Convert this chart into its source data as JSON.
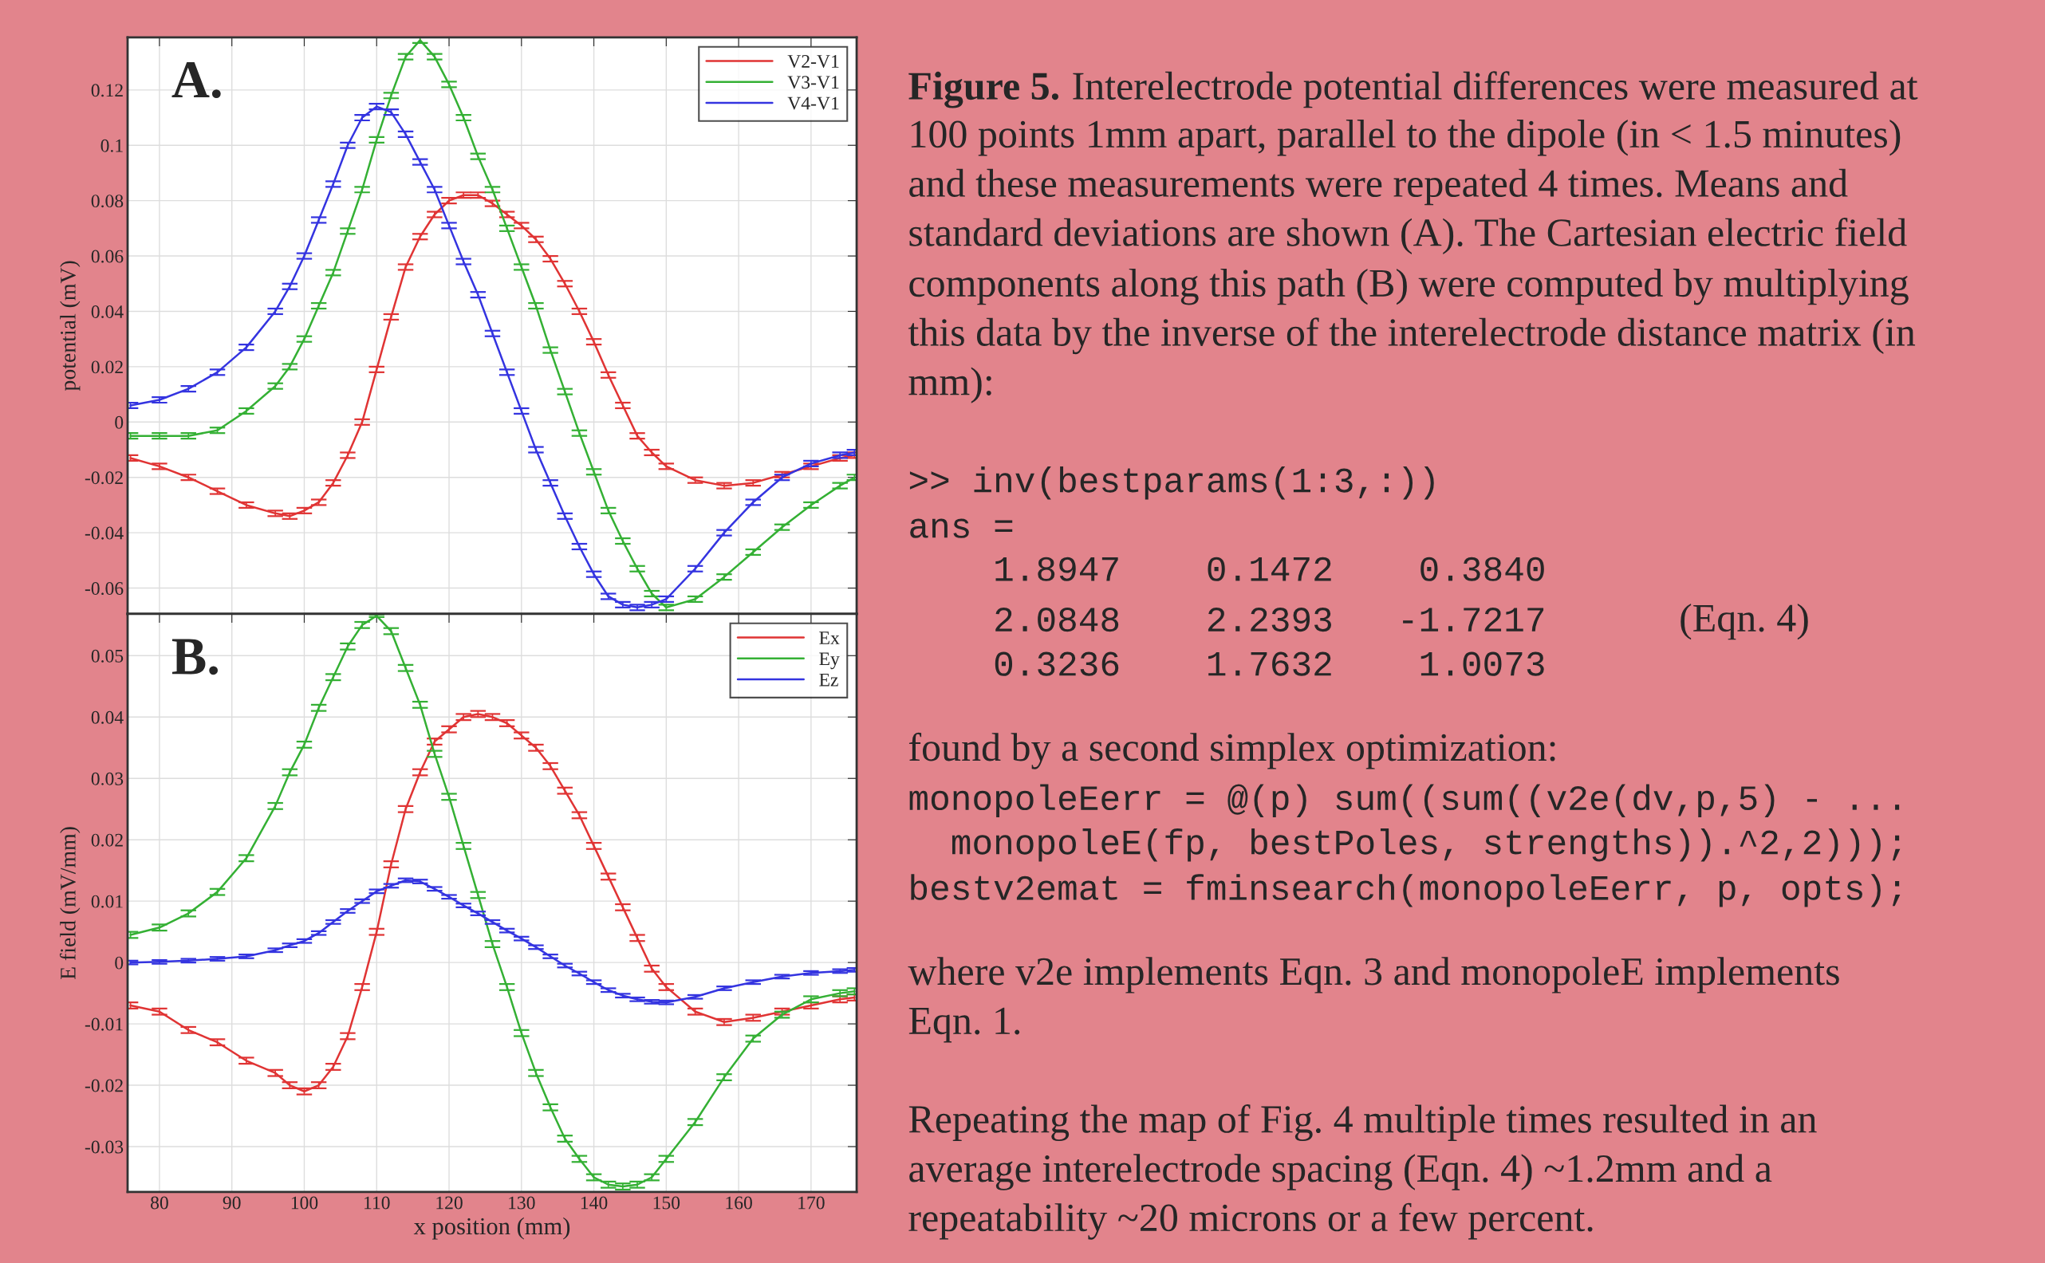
{
  "chart_data": [
    {
      "type": "line",
      "ylabel": "potential (mV)",
      "annotations": [
        "A."
      ],
      "legend": "top right",
      "grid": true,
      "tick_labels": "y",
      "marker": "none",
      "line_style": "solid",
      "x": [
        76,
        80,
        84,
        88,
        92,
        96,
        98,
        100,
        102,
        104,
        106,
        108,
        110,
        112,
        114,
        116,
        118,
        120,
        122,
        124,
        126,
        128,
        130,
        132,
        134,
        136,
        138,
        140,
        142,
        144,
        146,
        148,
        150,
        154,
        158,
        162,
        166,
        170,
        174,
        176
      ],
      "xlim": [
        75.6,
        176.3
      ],
      "xticks": [
        80,
        90,
        100,
        110,
        120,
        130,
        140,
        150,
        160,
        170
      ],
      "ylim": [
        -0.0693,
        0.139
      ],
      "yticks": [
        -0.06,
        -0.04,
        -0.02,
        0,
        0.02,
        0.04,
        0.06,
        0.08,
        0.1,
        0.12
      ],
      "series": [
        {
          "name": "V2-V1",
          "color": "#e03434",
          "values": [
            -0.013,
            -0.016,
            -0.02,
            -0.025,
            -0.03,
            -0.033,
            -0.034,
            -0.032,
            -0.029,
            -0.022,
            -0.012,
            0.0,
            0.019,
            0.038,
            0.056,
            0.067,
            0.075,
            0.08,
            0.082,
            0.082,
            0.079,
            0.075,
            0.071,
            0.066,
            0.059,
            0.05,
            0.04,
            0.029,
            0.017,
            0.006,
            -0.005,
            -0.011,
            -0.016,
            -0.021,
            -0.023,
            -0.022,
            -0.019,
            -0.016,
            -0.013,
            -0.012
          ],
          "errors": [
            0.001,
            0.001,
            0.001,
            0.001,
            0.001,
            0.001,
            0.001,
            0.001,
            0.001,
            0.001,
            0.001,
            0.001,
            0.001,
            0.001,
            0.001,
            0.001,
            0.001,
            0.001,
            0.001,
            0.001,
            0.001,
            0.001,
            0.001,
            0.001,
            0.001,
            0.001,
            0.001,
            0.001,
            0.001,
            0.001,
            0.001,
            0.001,
            0.001,
            0.001,
            0.001,
            0.001,
            0.001,
            0.001,
            0.001,
            0.001
          ]
        },
        {
          "name": "V3-V1",
          "color": "#34b034",
          "values": [
            -0.005,
            -0.005,
            -0.005,
            -0.003,
            0.004,
            0.013,
            0.02,
            0.03,
            0.042,
            0.054,
            0.069,
            0.084,
            0.102,
            0.118,
            0.132,
            0.138,
            0.132,
            0.122,
            0.11,
            0.096,
            0.084,
            0.07,
            0.056,
            0.042,
            0.026,
            0.011,
            -0.004,
            -0.018,
            -0.032,
            -0.043,
            -0.053,
            -0.062,
            -0.067,
            -0.064,
            -0.056,
            -0.047,
            -0.038,
            -0.03,
            -0.023,
            -0.02
          ],
          "errors": [
            0.001,
            0.001,
            0.001,
            0.001,
            0.001,
            0.001,
            0.001,
            0.001,
            0.001,
            0.001,
            0.001,
            0.001,
            0.001,
            0.001,
            0.001,
            0.001,
            0.001,
            0.001,
            0.001,
            0.001,
            0.001,
            0.001,
            0.001,
            0.001,
            0.001,
            0.001,
            0.001,
            0.001,
            0.001,
            0.001,
            0.001,
            0.001,
            0.001,
            0.001,
            0.001,
            0.001,
            0.001,
            0.001,
            0.001,
            0.001
          ]
        },
        {
          "name": "V4-V1",
          "color": "#3434e0",
          "values": [
            0.006,
            0.008,
            0.012,
            0.018,
            0.027,
            0.04,
            0.049,
            0.06,
            0.073,
            0.086,
            0.1,
            0.11,
            0.114,
            0.112,
            0.104,
            0.094,
            0.084,
            0.071,
            0.058,
            0.046,
            0.032,
            0.018,
            0.004,
            -0.01,
            -0.022,
            -0.034,
            -0.045,
            -0.055,
            -0.063,
            -0.066,
            -0.067,
            -0.066,
            -0.064,
            -0.053,
            -0.04,
            -0.029,
            -0.02,
            -0.015,
            -0.012,
            -0.011
          ],
          "errors": [
            0.001,
            0.001,
            0.001,
            0.001,
            0.001,
            0.001,
            0.001,
            0.001,
            0.001,
            0.001,
            0.001,
            0.001,
            0.001,
            0.001,
            0.001,
            0.001,
            0.001,
            0.001,
            0.001,
            0.001,
            0.001,
            0.001,
            0.001,
            0.001,
            0.001,
            0.001,
            0.001,
            0.001,
            0.001,
            0.001,
            0.001,
            0.001,
            0.001,
            0.001,
            0.001,
            0.001,
            0.001,
            0.001,
            0.001,
            0.001
          ]
        }
      ]
    },
    {
      "type": "line",
      "xlabel": "x position (mm)",
      "ylabel": "E field (mV/mm)",
      "annotations": [
        "B."
      ],
      "legend": "top right",
      "grid": true,
      "marker": "none",
      "line_style": "solid",
      "x": [
        76,
        80,
        84,
        88,
        92,
        96,
        98,
        100,
        102,
        104,
        106,
        108,
        110,
        112,
        114,
        116,
        118,
        120,
        122,
        124,
        126,
        128,
        130,
        132,
        134,
        136,
        138,
        140,
        142,
        144,
        146,
        148,
        150,
        154,
        158,
        162,
        166,
        170,
        174,
        176
      ],
      "xlim": [
        75.6,
        176.3
      ],
      "xticks": [
        80,
        90,
        100,
        110,
        120,
        130,
        140,
        150,
        160,
        170
      ],
      "ylim": [
        -0.0374,
        0.0568
      ],
      "yticks": [
        -0.03,
        -0.02,
        -0.01,
        0,
        0.01,
        0.02,
        0.03,
        0.04,
        0.05
      ],
      "series": [
        {
          "name": "Ex",
          "color": "#e03434",
          "values": [
            -0.007,
            -0.008,
            -0.011,
            -0.013,
            -0.016,
            -0.018,
            -0.02,
            -0.021,
            -0.02,
            -0.017,
            -0.012,
            -0.004,
            0.005,
            0.016,
            0.025,
            0.031,
            0.036,
            0.038,
            0.04,
            0.0405,
            0.04,
            0.039,
            0.037,
            0.035,
            0.032,
            0.028,
            0.024,
            0.019,
            0.014,
            0.009,
            0.004,
            -0.001,
            -0.004,
            -0.008,
            -0.0097,
            -0.009,
            -0.008,
            -0.007,
            -0.006,
            -0.0057
          ],
          "errors": [
            0.0005,
            0.0005,
            0.0005,
            0.0005,
            0.0005,
            0.0005,
            0.0005,
            0.0005,
            0.0005,
            0.0005,
            0.0005,
            0.0005,
            0.0005,
            0.0005,
            0.0005,
            0.0005,
            0.0005,
            0.0005,
            0.0005,
            0.0005,
            0.0005,
            0.0005,
            0.0005,
            0.0005,
            0.0005,
            0.0005,
            0.0005,
            0.0005,
            0.0005,
            0.0005,
            0.0005,
            0.0005,
            0.0005,
            0.0005,
            0.0005,
            0.0005,
            0.0005,
            0.0005,
            0.0005,
            0.0005
          ]
        },
        {
          "name": "Ey",
          "color": "#34b034",
          "values": [
            0.0045,
            0.0057,
            0.008,
            0.0115,
            0.017,
            0.0255,
            0.031,
            0.0355,
            0.0415,
            0.0465,
            0.0515,
            0.055,
            0.0565,
            0.054,
            0.048,
            0.042,
            0.034,
            0.027,
            0.019,
            0.011,
            0.003,
            -0.004,
            -0.0115,
            -0.018,
            -0.0236,
            -0.0287,
            -0.032,
            -0.035,
            -0.0362,
            -0.0365,
            -0.0362,
            -0.035,
            -0.032,
            -0.026,
            -0.0187,
            -0.0124,
            -0.0085,
            -0.006,
            -0.005,
            -0.0047
          ],
          "errors": [
            0.0005,
            0.0005,
            0.0005,
            0.0005,
            0.0005,
            0.0005,
            0.0005,
            0.0005,
            0.0005,
            0.0005,
            0.0005,
            0.0005,
            0.0002,
            0.0005,
            0.0005,
            0.0005,
            0.0005,
            0.0005,
            0.0005,
            0.0005,
            0.0005,
            0.0005,
            0.0005,
            0.0005,
            0.0005,
            0.0005,
            0.0005,
            0.0005,
            0.0005,
            0.0005,
            0.0005,
            0.0005,
            0.0005,
            0.0005,
            0.0005,
            0.0005,
            0.0005,
            0.0005,
            0.0005,
            0.0005
          ]
        },
        {
          "name": "Ez",
          "color": "#3434e0",
          "values": [
            0.0,
            0.0001,
            0.0003,
            0.0006,
            0.001,
            0.002,
            0.0028,
            0.0035,
            0.0048,
            0.0066,
            0.0084,
            0.01,
            0.0116,
            0.0125,
            0.0134,
            0.0132,
            0.012,
            0.0107,
            0.0093,
            0.008,
            0.0066,
            0.0052,
            0.0039,
            0.0025,
            0.001,
            -0.0005,
            -0.0018,
            -0.0032,
            -0.0045,
            -0.0054,
            -0.006,
            -0.0064,
            -0.0065,
            -0.0056,
            -0.0042,
            -0.0032,
            -0.0023,
            -0.0017,
            -0.0014,
            -0.0012
          ],
          "errors": [
            0.0003,
            0.0003,
            0.0003,
            0.0003,
            0.0003,
            0.0003,
            0.0003,
            0.0003,
            0.0003,
            0.0003,
            0.0003,
            0.0003,
            0.0003,
            0.0003,
            0.0003,
            0.0003,
            0.0003,
            0.0003,
            0.0003,
            0.0003,
            0.0003,
            0.0003,
            0.0003,
            0.0003,
            0.0003,
            0.0003,
            0.0003,
            0.0003,
            0.0003,
            0.0003,
            0.0003,
            0.0003,
            0.0003,
            0.0003,
            0.0003,
            0.0003,
            0.0003,
            0.0003,
            0.0003,
            0.0003
          ]
        }
      ]
    },
    {
      "type": "other",
      "title": "Figure 5.",
      "annotations": [
        "Interelectrode potential differences were measured at",
        "100 points 1mm apart, parallel to the dipole (in < 1.5 minutes)",
        "and these measurements were repeated 4 times. Means and",
        "standard deviations are shown (A). The Cartesian electric field",
        "components along this path (B) were computed by multiplying",
        "this data by the inverse of the interelectrode distance matrix (in",
        "mm):",
        ">> inv(bestparams(1:3,:))",
        "ans =",
        "    1.8947    0.1472    0.3840",
        "    2.0848    2.2393   -1.7217",
        "    0.3236    1.7632    1.0073",
        "(Eqn. 4)",
        "found by a second simplex optimization:",
        "monopoleEerr = @(p) sum((sum((v2e(dv,p,5) - ...",
        "  monopoleE(fp, bestPoles, strengths)).^2,2)));",
        "bestv2emat = fminsearch(monopoleEerr, p, opts);",
        "where v2e implements Eqn. 3 and monopoleE implements",
        "Eqn. 1.",
        "Repeating the map of Fig. 4 multiple times resulted in an",
        "average interelectrode spacing (Eqn. 4) ~1.2mm and a",
        "repeatability ~20 microns or a few percent."
      ]
    }
  ]
}
